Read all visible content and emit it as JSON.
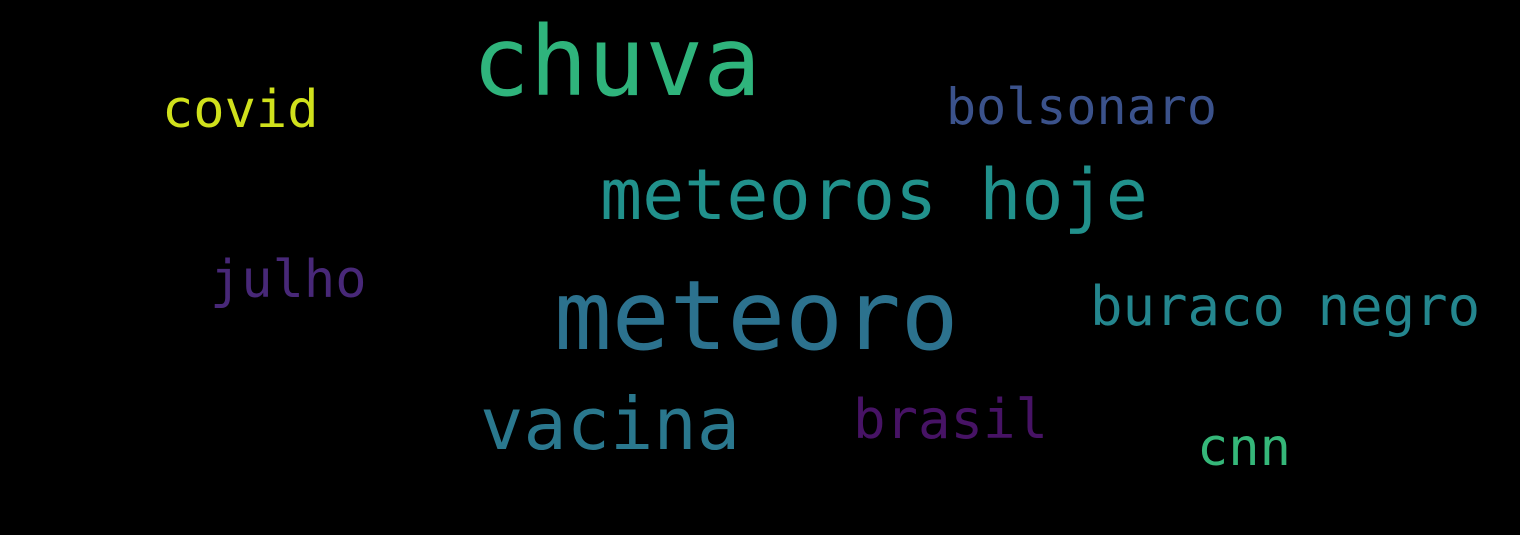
{
  "background": "#000000",
  "words": {
    "chuva": {
      "text": "chuva",
      "color": "#2fb47c"
    },
    "covid": {
      "text": "covid",
      "color": "#d0e11c"
    },
    "bolsonaro": {
      "text": "bolsonaro",
      "color": "#3b528b"
    },
    "meteoros_hoje": {
      "text": "meteoros hoje",
      "color": "#21918c"
    },
    "julho": {
      "text": "julho",
      "color": "#482878"
    },
    "meteoro": {
      "text": "meteoro",
      "color": "#2c728e"
    },
    "buraco_negro": {
      "text": "buraco negro",
      "color": "#24868e"
    },
    "vacina": {
      "text": "vacina",
      "color": "#2a788e"
    },
    "brasil": {
      "text": "brasil",
      "color": "#471365"
    },
    "cnn": {
      "text": "cnn",
      "color": "#35b779"
    }
  }
}
